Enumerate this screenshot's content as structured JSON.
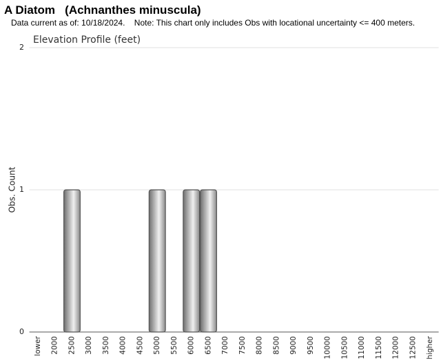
{
  "chart_data": {
    "type": "bar",
    "title": "A Diatom   (Achnanthes minuscula)",
    "subtitle": "Data current as of: 10/18/2024.    Note: This chart only includes Obs with locational uncertainty <= 400 meters.",
    "chart_title": "Elevation Profile (feet)",
    "y_label": "Obs. Count",
    "categories": [
      "lower",
      "2000",
      "2500",
      "3000",
      "3500",
      "4000",
      "4500",
      "5000",
      "5500",
      "6000",
      "6500",
      "7000",
      "7500",
      "8000",
      "8500",
      "9000",
      "9500",
      "10000",
      "10500",
      "11000",
      "11500",
      "12000",
      "12500",
      "higher"
    ],
    "values": [
      0,
      0,
      1,
      0,
      0,
      0,
      0,
      1,
      0,
      1,
      1,
      0,
      0,
      0,
      0,
      0,
      0,
      0,
      0,
      0,
      0,
      0,
      0,
      0
    ],
    "color": "#999999",
    "ylim": [
      0,
      2
    ],
    "yticks": [
      0,
      1,
      2
    ],
    "grid": true
  }
}
